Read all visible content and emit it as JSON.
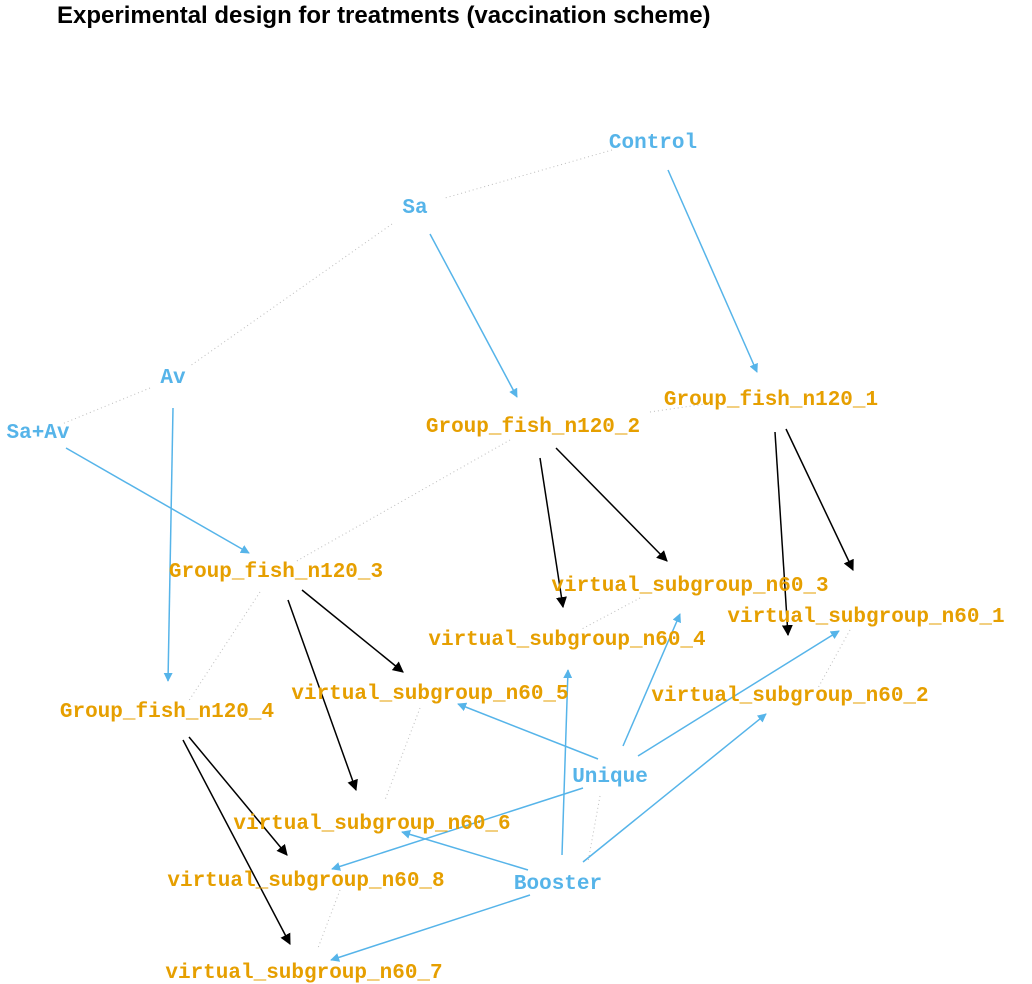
{
  "title": "Experimental design for treatments (vaccination scheme)",
  "colors": {
    "treatment_node": "#56B4E9",
    "group_node": "#E69F00",
    "treatment_edge": "#56B4E9",
    "group_edge": "#000000",
    "relation": "#bdbdbd"
  },
  "nodes": {
    "control": "Control",
    "sa": "Sa",
    "av": "Av",
    "sa_av": "Sa+Av",
    "g1": "Group_fish_n120_1",
    "g2": "Group_fish_n120_2",
    "g3": "Group_fish_n120_3",
    "g4": "Group_fish_n120_4",
    "v1": "virtual_subgroup_n60_1",
    "v2": "virtual_subgroup_n60_2",
    "v3": "virtual_subgroup_n60_3",
    "v4": "virtual_subgroup_n60_4",
    "v5": "virtual_subgroup_n60_5",
    "v6": "virtual_subgroup_n60_6",
    "v7": "virtual_subgroup_n60_7",
    "v8": "virtual_subgroup_n60_8",
    "unique": "Unique",
    "booster": "Booster"
  },
  "edges": [
    {
      "from": "control",
      "to": "g1",
      "kind": "treatment"
    },
    {
      "from": "sa",
      "to": "g2",
      "kind": "treatment"
    },
    {
      "from": "sa_av",
      "to": "g3",
      "kind": "treatment"
    },
    {
      "from": "av",
      "to": "g4",
      "kind": "treatment"
    },
    {
      "from": "g1",
      "to": "v1",
      "kind": "group"
    },
    {
      "from": "g1",
      "to": "v2",
      "kind": "group"
    },
    {
      "from": "g2",
      "to": "v3",
      "kind": "group"
    },
    {
      "from": "g2",
      "to": "v4",
      "kind": "group"
    },
    {
      "from": "g3",
      "to": "v5",
      "kind": "group"
    },
    {
      "from": "g3",
      "to": "v6",
      "kind": "group"
    },
    {
      "from": "g4",
      "to": "v8",
      "kind": "group"
    },
    {
      "from": "g4",
      "to": "v7",
      "kind": "group"
    },
    {
      "from": "unique",
      "to": "v1",
      "kind": "treatment"
    },
    {
      "from": "unique",
      "to": "v3",
      "kind": "treatment"
    },
    {
      "from": "unique",
      "to": "v5",
      "kind": "treatment"
    },
    {
      "from": "unique",
      "to": "v8",
      "kind": "treatment"
    },
    {
      "from": "booster",
      "to": "v2",
      "kind": "treatment"
    },
    {
      "from": "booster",
      "to": "v4",
      "kind": "treatment"
    },
    {
      "from": "booster",
      "to": "v6",
      "kind": "treatment"
    },
    {
      "from": "booster",
      "to": "v7",
      "kind": "treatment"
    }
  ],
  "relations": [
    [
      "control",
      "sa"
    ],
    [
      "sa",
      "av"
    ],
    [
      "av",
      "sa_av"
    ],
    [
      "g2",
      "g1"
    ],
    [
      "g2",
      "g3"
    ],
    [
      "g3",
      "g4"
    ],
    [
      "v3",
      "v4"
    ],
    [
      "v1",
      "v2"
    ],
    [
      "v5",
      "v6"
    ],
    [
      "v8",
      "v7"
    ],
    [
      "unique",
      "booster"
    ]
  ]
}
